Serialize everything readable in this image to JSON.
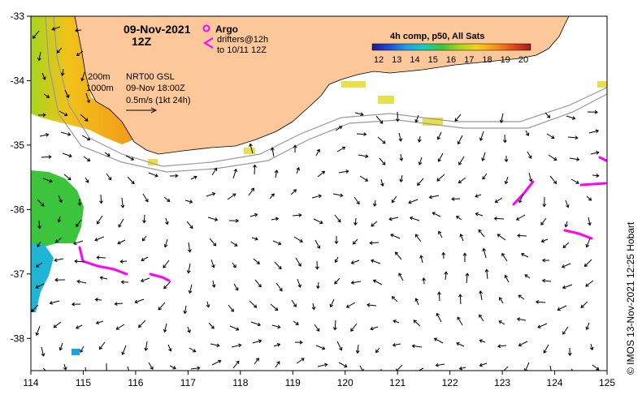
{
  "title": {
    "date": "09-Nov-2021",
    "time": "12Z"
  },
  "legend": {
    "argo_label": "Argo",
    "argo_color": "#ff00ff",
    "drifters_line1": "drifters@12h",
    "drifters_line2": "to 10/11 12Z",
    "drifter_color": "#ff00ff"
  },
  "isobaths": {
    "shallow_label": "200m",
    "deep_label": "1000m"
  },
  "current_info": {
    "line1": "NRT00 GSL",
    "line2": "09-Nov 18:00Z",
    "line3": "0.5m/s (1kt 24h)"
  },
  "colorbar": {
    "title": "4h comp, p50, All Sats",
    "ticks": [
      "12",
      "13",
      "14",
      "15",
      "16",
      "17",
      "18",
      "19",
      "20"
    ],
    "colors": [
      "#1a1a8c",
      "#1f4fd6",
      "#1fa0e6",
      "#1ec9b0",
      "#3cc43c",
      "#a6d51e",
      "#f2d21a",
      "#f29a1a",
      "#e8501a",
      "#a01a1a"
    ]
  },
  "land_color": "#fdc899",
  "credit": "© IMOS 13-Nov-2021 12:25 Hobart",
  "axes": {
    "x_ticks": [
      "114",
      "115",
      "116",
      "117",
      "118",
      "119",
      "120",
      "121",
      "122",
      "123",
      "124",
      "125"
    ],
    "y_ticks": [
      "-33",
      "-34",
      "-35",
      "-36",
      "-37",
      "-38"
    ],
    "lon_range": [
      114,
      125
    ],
    "lat_range": [
      -38.5,
      -33
    ]
  }
}
